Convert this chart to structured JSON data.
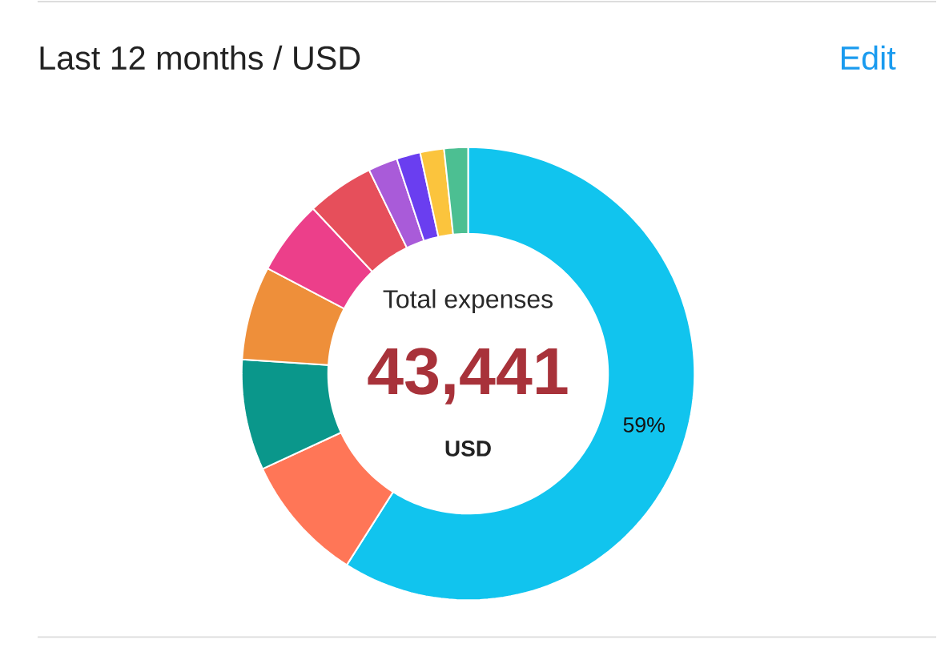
{
  "chart_data": {
    "type": "donut",
    "title": "Last 12 months / USD",
    "categories": [
      null,
      null,
      null,
      null,
      null,
      null,
      null,
      null,
      null,
      null
    ],
    "values": [
      59,
      9.1,
      7.9,
      6.7,
      5.3,
      4.8,
      2.1,
      1.7,
      1.7,
      1.7
    ],
    "colors": [
      "#11c4ee",
      "#ff7657",
      "#0a978b",
      "#ee8f3a",
      "#ec3f8a",
      "#e64f5b",
      "#a95bd9",
      "#6a3ef0",
      "#fbc43d",
      "#4cbf92"
    ],
    "value_labels": [
      "59%",
      null,
      null,
      null,
      null,
      null,
      null,
      null,
      null,
      null
    ],
    "annotations": [
      "Edit",
      "Total expenses",
      "43,441",
      "USD"
    ]
  }
}
